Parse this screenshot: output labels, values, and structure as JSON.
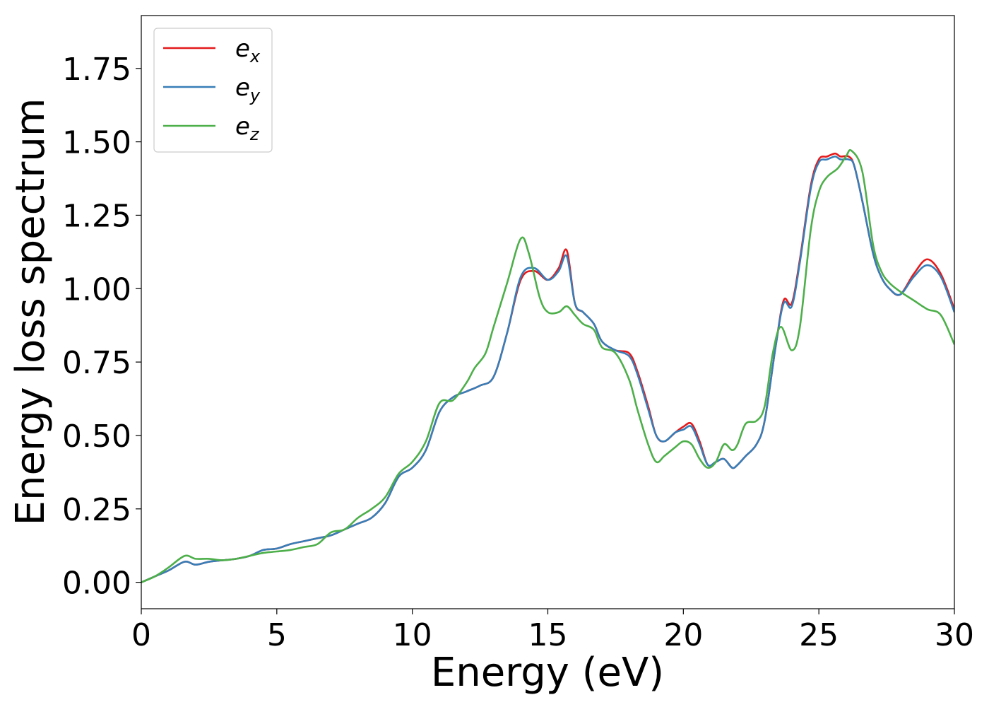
{
  "chart_data": {
    "type": "line",
    "title": "",
    "xlabel": "Energy (eV)",
    "ylabel": "Energy loss spectrum",
    "xlim": [
      0,
      30
    ],
    "ylim": [
      -0.09,
      1.93
    ],
    "xticks": [
      0,
      5,
      10,
      15,
      20,
      25,
      30
    ],
    "xtick_labels": [
      "0",
      "5",
      "10",
      "15",
      "20",
      "25",
      "30"
    ],
    "yticks": [
      0.0,
      0.25,
      0.5,
      0.75,
      1.0,
      1.25,
      1.5,
      1.75
    ],
    "ytick_labels": [
      "0.00",
      "0.25",
      "0.50",
      "0.75",
      "1.00",
      "1.25",
      "1.50",
      "1.75"
    ],
    "grid": false,
    "legend_position": "top-left",
    "series": [
      {
        "name": "e_x",
        "label_base": "e",
        "label_sub": "x",
        "color": "#e41a1c",
        "x": [
          0,
          0.5,
          1.0,
          1.6,
          2.0,
          2.5,
          3.0,
          3.5,
          4.0,
          4.5,
          5.0,
          5.5,
          6.0,
          6.5,
          7.0,
          7.5,
          8.0,
          8.5,
          9.0,
          9.5,
          10.0,
          10.5,
          11.0,
          11.5,
          12.0,
          12.5,
          13.0,
          13.5,
          14.0,
          14.5,
          15.0,
          15.4,
          15.7,
          16.0,
          16.3,
          16.7,
          17.0,
          17.5,
          18.0,
          18.3,
          18.7,
          19.0,
          19.3,
          19.7,
          20.0,
          20.3,
          20.6,
          20.9,
          21.2,
          21.5,
          21.8,
          22.0,
          22.3,
          22.7,
          23.0,
          23.4,
          23.7,
          24.0,
          24.3,
          24.7,
          25.0,
          25.3,
          25.6,
          25.8,
          26.1,
          26.3,
          26.6,
          27.0,
          27.3,
          27.6,
          28.0,
          28.5,
          29.0,
          29.5,
          30.0
        ],
        "y": [
          0.0,
          0.02,
          0.04,
          0.07,
          0.06,
          0.07,
          0.075,
          0.08,
          0.09,
          0.11,
          0.115,
          0.13,
          0.14,
          0.15,
          0.16,
          0.18,
          0.2,
          0.22,
          0.27,
          0.36,
          0.39,
          0.45,
          0.58,
          0.63,
          0.65,
          0.67,
          0.7,
          0.85,
          1.03,
          1.06,
          1.03,
          1.07,
          1.13,
          0.95,
          0.92,
          0.88,
          0.82,
          0.79,
          0.78,
          0.72,
          0.6,
          0.5,
          0.48,
          0.51,
          0.53,
          0.54,
          0.48,
          0.4,
          0.41,
          0.42,
          0.39,
          0.4,
          0.43,
          0.47,
          0.55,
          0.8,
          0.96,
          0.95,
          1.1,
          1.35,
          1.44,
          1.45,
          1.46,
          1.45,
          1.45,
          1.42,
          1.3,
          1.12,
          1.04,
          1.0,
          0.98,
          1.05,
          1.1,
          1.05,
          0.93
        ]
      },
      {
        "name": "e_y",
        "label_base": "e",
        "label_sub": "y",
        "color": "#377eb8",
        "x": [
          0,
          0.5,
          1.0,
          1.6,
          2.0,
          2.5,
          3.0,
          3.5,
          4.0,
          4.5,
          5.0,
          5.5,
          6.0,
          6.5,
          7.0,
          7.5,
          8.0,
          8.5,
          9.0,
          9.5,
          10.0,
          10.5,
          11.0,
          11.5,
          12.0,
          12.5,
          13.0,
          13.5,
          14.0,
          14.5,
          15.0,
          15.4,
          15.7,
          16.0,
          16.3,
          16.7,
          17.0,
          17.5,
          18.0,
          18.3,
          18.7,
          19.0,
          19.3,
          19.7,
          20.0,
          20.3,
          20.6,
          20.9,
          21.2,
          21.5,
          21.8,
          22.0,
          22.3,
          22.7,
          23.0,
          23.4,
          23.7,
          24.0,
          24.3,
          24.7,
          25.0,
          25.3,
          25.6,
          25.8,
          26.1,
          26.3,
          26.6,
          27.0,
          27.3,
          27.6,
          28.0,
          28.5,
          29.0,
          29.5,
          30.0
        ],
        "y": [
          0.0,
          0.02,
          0.04,
          0.07,
          0.06,
          0.07,
          0.075,
          0.08,
          0.09,
          0.11,
          0.115,
          0.13,
          0.14,
          0.15,
          0.16,
          0.18,
          0.2,
          0.22,
          0.27,
          0.36,
          0.39,
          0.45,
          0.58,
          0.63,
          0.65,
          0.67,
          0.7,
          0.85,
          1.04,
          1.07,
          1.03,
          1.06,
          1.11,
          0.95,
          0.92,
          0.88,
          0.82,
          0.79,
          0.77,
          0.71,
          0.59,
          0.5,
          0.48,
          0.51,
          0.52,
          0.53,
          0.47,
          0.4,
          0.41,
          0.42,
          0.39,
          0.4,
          0.43,
          0.47,
          0.55,
          0.8,
          0.95,
          0.94,
          1.09,
          1.34,
          1.43,
          1.44,
          1.45,
          1.44,
          1.44,
          1.42,
          1.3,
          1.12,
          1.04,
          1.0,
          0.98,
          1.04,
          1.08,
          1.04,
          0.92
        ]
      },
      {
        "name": "e_z",
        "label_base": "e",
        "label_sub": "z",
        "color": "#4daf4a",
        "x": [
          0,
          0.5,
          1.0,
          1.6,
          2.0,
          2.5,
          3.0,
          3.5,
          4.0,
          4.5,
          5.0,
          5.5,
          6.0,
          6.5,
          7.0,
          7.5,
          8.0,
          8.5,
          9.0,
          9.5,
          10.0,
          10.5,
          11.0,
          11.5,
          12.0,
          12.3,
          12.7,
          13.0,
          13.5,
          14.0,
          14.3,
          14.7,
          15.0,
          15.4,
          15.7,
          16.0,
          16.3,
          16.7,
          17.0,
          17.5,
          18.0,
          18.3,
          18.7,
          19.0,
          19.3,
          19.7,
          20.0,
          20.3,
          20.6,
          20.9,
          21.2,
          21.5,
          21.8,
          22.0,
          22.3,
          22.7,
          23.0,
          23.3,
          23.6,
          24.0,
          24.3,
          24.7,
          25.0,
          25.3,
          25.7,
          26.0,
          26.2,
          26.6,
          27.0,
          27.3,
          27.6,
          28.0,
          28.5,
          29.0,
          29.5,
          30.0
        ],
        "y": [
          0.0,
          0.02,
          0.05,
          0.09,
          0.08,
          0.08,
          0.075,
          0.08,
          0.09,
          0.1,
          0.105,
          0.11,
          0.12,
          0.13,
          0.17,
          0.18,
          0.22,
          0.25,
          0.29,
          0.37,
          0.41,
          0.48,
          0.61,
          0.62,
          0.68,
          0.73,
          0.78,
          0.87,
          1.02,
          1.17,
          1.12,
          0.97,
          0.92,
          0.92,
          0.94,
          0.91,
          0.88,
          0.86,
          0.8,
          0.78,
          0.69,
          0.59,
          0.47,
          0.41,
          0.43,
          0.46,
          0.48,
          0.47,
          0.42,
          0.39,
          0.41,
          0.47,
          0.45,
          0.47,
          0.54,
          0.55,
          0.6,
          0.78,
          0.87,
          0.79,
          0.87,
          1.2,
          1.33,
          1.38,
          1.41,
          1.45,
          1.47,
          1.4,
          1.15,
          1.06,
          1.02,
          0.99,
          0.96,
          0.93,
          0.91,
          0.81
        ]
      }
    ]
  }
}
